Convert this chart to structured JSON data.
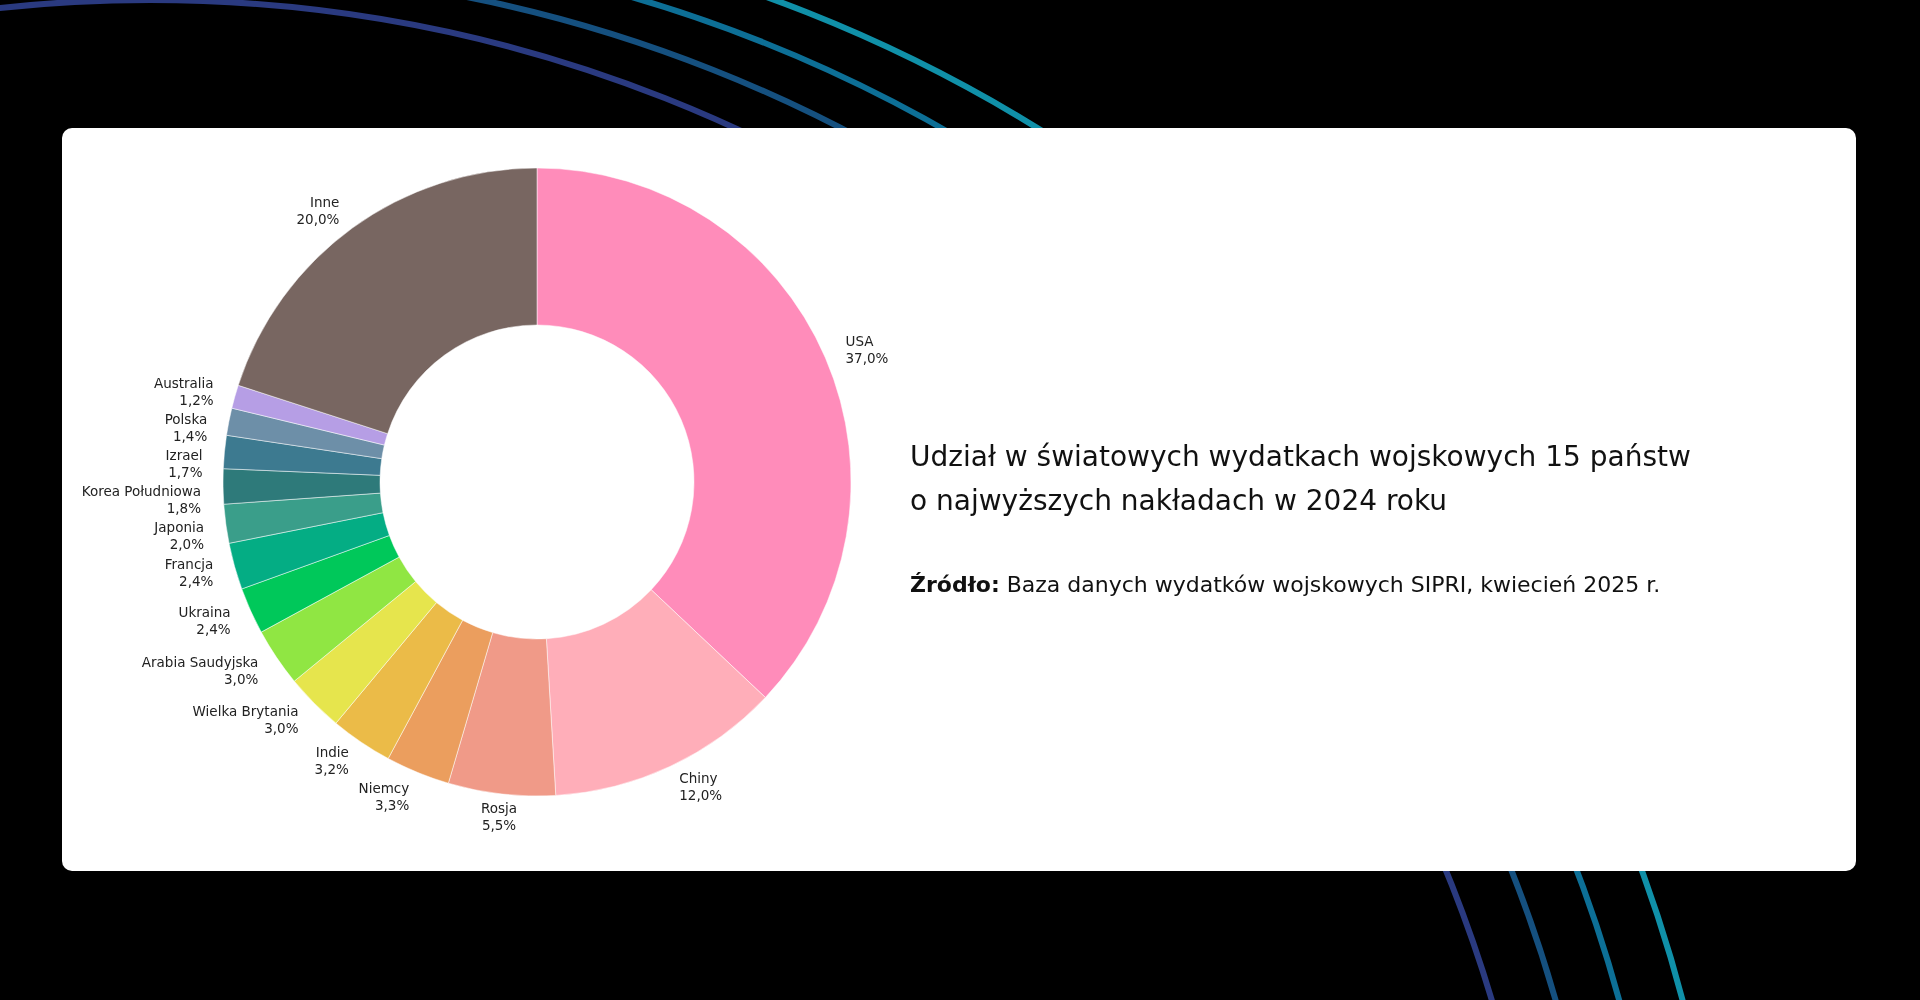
{
  "chart_data": {
    "type": "donut",
    "title": "Udział w światowych wydatkach wojskowych 15 państw o najwyższych nakładach w 2024 roku",
    "annotations": [
      "Źródło: Baza danych wydatków wojskowych SIPRI, kwiecień 2025 r."
    ],
    "categories": [
      "USA",
      "Chiny",
      "Rosja",
      "Niemcy",
      "Indie",
      "Wielka Brytania",
      "Arabia Saudyjska",
      "Ukraina",
      "Francja",
      "Japonia",
      "Korea Południowa",
      "Izrael",
      "Polska",
      "Australia",
      "Inne"
    ],
    "values": [
      37.0,
      12.0,
      5.5,
      3.3,
      3.2,
      3.0,
      3.0,
      2.4,
      2.4,
      2.0,
      1.8,
      1.7,
      1.4,
      1.2,
      20.0
    ],
    "value_labels": [
      "37,0%",
      "12,0%",
      "5,5%",
      "3,3%",
      "3,2%",
      "3,0%",
      "3,0%",
      "2,4%",
      "2,4%",
      "2,0%",
      "1,8%",
      "1,7%",
      "1,4%",
      "1,2%",
      "20,0%"
    ],
    "colors": [
      "#ff8cba",
      "#ffaeb9",
      "#f09a88",
      "#eb9e5e",
      "#ebbb48",
      "#e6e54d",
      "#90e643",
      "#00c85a",
      "#04ad84",
      "#3a9e8a",
      "#2e7a7a",
      "#3d7a90",
      "#6d8fa8",
      "#b69ee5",
      "#786661"
    ]
  }
}
